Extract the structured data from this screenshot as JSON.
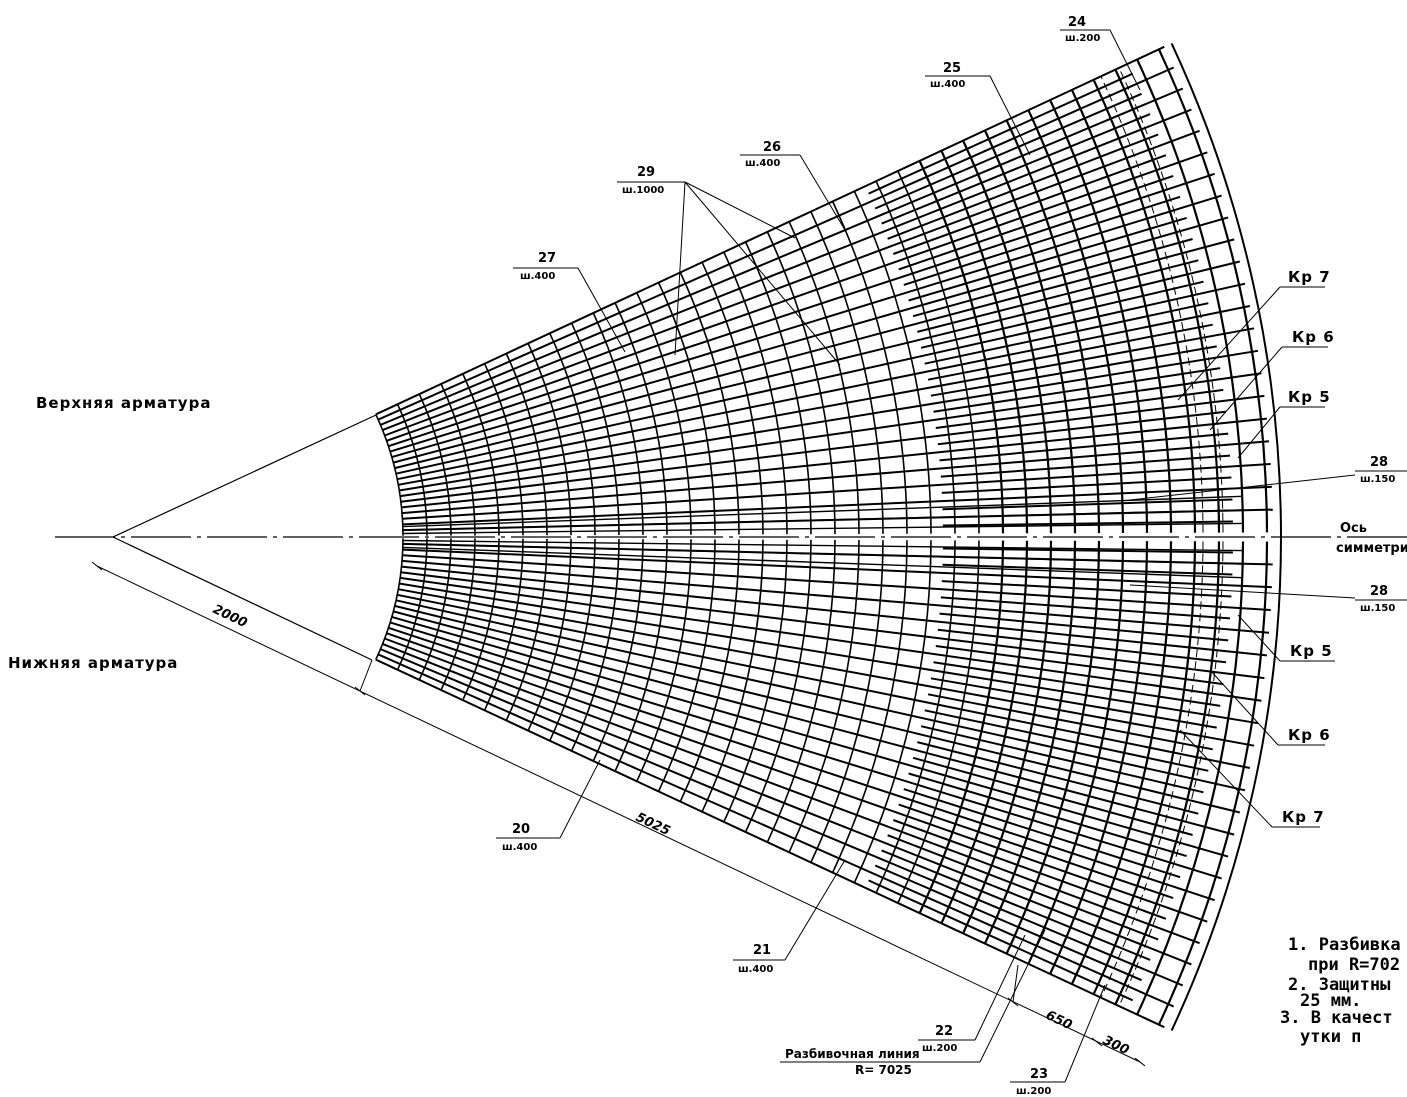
{
  "sections": {
    "top": "Верхняя арматура",
    "bottom": "Нижняя арматура"
  },
  "axis_label": {
    "line1": "Ось",
    "line2": "симметрии"
  },
  "callouts_top": [
    {
      "id": "24",
      "sub": "ш.200"
    },
    {
      "id": "25",
      "sub": "ш.400"
    },
    {
      "id": "26",
      "sub": "ш.400"
    },
    {
      "id": "29",
      "sub": "ш.1000"
    },
    {
      "id": "27",
      "sub": "ш.400"
    },
    {
      "id": "28",
      "sub": "ш.150"
    }
  ],
  "callouts_bottom": [
    {
      "id": "28",
      "sub": "ш.150"
    },
    {
      "id": "20",
      "sub": "ш.400"
    },
    {
      "id": "21",
      "sub": "ш.400"
    },
    {
      "id": "22",
      "sub": "ш.200"
    },
    {
      "id": "23",
      "sub": "ш.200"
    }
  ],
  "frames_top": [
    "Кр 7",
    "Кр 6",
    "Кр 5"
  ],
  "frames_bottom": [
    "Кр 5",
    "Кр 6",
    "Кр 7"
  ],
  "dimensions": [
    "2000",
    "5025",
    "650",
    "300"
  ],
  "layout_line": {
    "line1": "Разбивочная линия",
    "line2": "R= 7025"
  },
  "notes": [
    "1. Разбивка",
    "при R=702",
    "2. Защитны",
    "25 мм.",
    "3. В качест",
    "утки п"
  ]
}
